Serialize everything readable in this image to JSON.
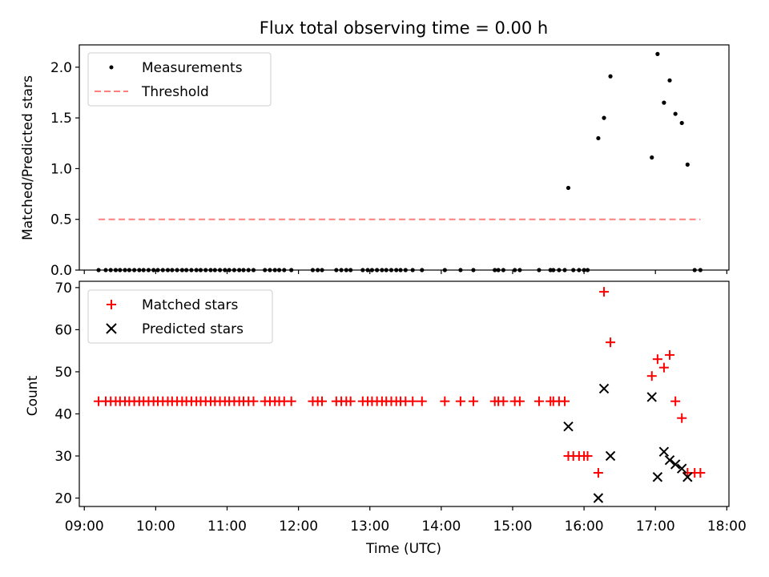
{
  "chart_data": [
    {
      "type": "scatter",
      "title": "Flux total observing time = 0.00 h",
      "xlabel": "",
      "ylabel": "Matched/Predicted stars",
      "xlim": [
        8.93,
        18.03
      ],
      "ylim": [
        0.0,
        2.22
      ],
      "yticks": [
        0.0,
        0.5,
        1.0,
        1.5,
        2.0
      ],
      "ytick_labels": [
        "0.0",
        "0.5",
        "1.0",
        "1.5",
        "2.0"
      ],
      "legend": {
        "position": "top-left",
        "entries": [
          "Measurements",
          "Threshold"
        ]
      },
      "series": [
        {
          "name": "Measurements",
          "marker": "dot",
          "color": "#000000",
          "x": [
            9.2,
            9.3,
            9.37,
            9.44,
            9.5,
            9.57,
            9.63,
            9.7,
            9.77,
            9.83,
            9.9,
            9.97,
            10.03,
            10.1,
            10.17,
            10.23,
            10.3,
            10.37,
            10.43,
            10.5,
            10.57,
            10.63,
            10.7,
            10.77,
            10.83,
            10.9,
            10.97,
            11.03,
            11.1,
            11.17,
            11.23,
            11.3,
            11.37,
            11.53,
            11.6,
            11.67,
            11.73,
            11.8,
            11.9,
            12.2,
            12.27,
            12.33,
            12.53,
            12.6,
            12.67,
            12.73,
            12.9,
            12.97,
            13.03,
            13.1,
            13.17,
            13.23,
            13.3,
            13.37,
            13.43,
            13.5,
            13.6,
            13.73,
            14.05,
            14.27,
            14.45,
            14.75,
            14.8,
            14.87,
            15.03,
            15.1,
            15.37,
            15.53,
            15.57,
            15.65,
            15.73,
            15.78,
            15.85,
            15.93,
            16.0,
            16.05,
            16.2,
            16.28,
            16.37,
            16.95,
            17.03,
            17.12,
            17.2,
            17.28,
            17.37,
            17.45,
            17.55,
            17.63
          ],
          "values": [
            0,
            0,
            0,
            0,
            0,
            0,
            0,
            0,
            0,
            0,
            0,
            0,
            0,
            0,
            0,
            0,
            0,
            0,
            0,
            0,
            0,
            0,
            0,
            0,
            0,
            0,
            0,
            0,
            0,
            0,
            0,
            0,
            0,
            0,
            0,
            0,
            0,
            0,
            0,
            0,
            0,
            0,
            0,
            0,
            0,
            0,
            0,
            0,
            0,
            0,
            0,
            0,
            0,
            0,
            0,
            0,
            0,
            0,
            0,
            0,
            0,
            0,
            0,
            0,
            0,
            0,
            0,
            0,
            0,
            0,
            0,
            0.81,
            0,
            0,
            0,
            0,
            1.3,
            1.5,
            1.91,
            1.11,
            2.13,
            1.65,
            1.87,
            1.54,
            1.45,
            1.04,
            0,
            0
          ]
        },
        {
          "name": "Threshold",
          "type": "line",
          "style": "dashed",
          "color": "#ff7f7f",
          "x": [
            9.2,
            17.63
          ],
          "values": [
            0.5,
            0.5
          ]
        }
      ]
    },
    {
      "type": "scatter",
      "title": "",
      "xlabel": "Time (UTC)",
      "ylabel": "Count",
      "xlim": [
        8.93,
        18.03
      ],
      "ylim": [
        18.0,
        71.5
      ],
      "yticks": [
        20,
        30,
        40,
        50,
        60,
        70
      ],
      "ytick_labels": [
        "20",
        "30",
        "40",
        "50",
        "60",
        "70"
      ],
      "xticks": [
        9,
        10,
        11,
        12,
        13,
        14,
        15,
        16,
        17,
        18
      ],
      "xtick_labels": [
        "09:00",
        "10:00",
        "11:00",
        "12:00",
        "13:00",
        "14:00",
        "15:00",
        "16:00",
        "17:00",
        "18:00"
      ],
      "legend": {
        "position": "top-left",
        "entries": [
          "Matched stars",
          "Predicted stars"
        ]
      },
      "series": [
        {
          "name": "Matched stars",
          "marker": "plus",
          "color": "#ff0000",
          "x": [
            9.2,
            9.3,
            9.37,
            9.44,
            9.5,
            9.57,
            9.63,
            9.7,
            9.77,
            9.83,
            9.9,
            9.97,
            10.03,
            10.1,
            10.17,
            10.23,
            10.3,
            10.37,
            10.43,
            10.5,
            10.57,
            10.63,
            10.7,
            10.77,
            10.83,
            10.9,
            10.97,
            11.03,
            11.1,
            11.17,
            11.23,
            11.3,
            11.37,
            11.53,
            11.6,
            11.67,
            11.73,
            11.8,
            11.9,
            12.2,
            12.27,
            12.33,
            12.53,
            12.6,
            12.67,
            12.73,
            12.9,
            12.97,
            13.03,
            13.1,
            13.17,
            13.23,
            13.3,
            13.37,
            13.43,
            13.5,
            13.6,
            13.73,
            14.05,
            14.27,
            14.45,
            14.75,
            14.8,
            14.87,
            15.03,
            15.1,
            15.37,
            15.53,
            15.57,
            15.65,
            15.73,
            15.78,
            15.85,
            15.93,
            16.0,
            16.05,
            16.2,
            16.28,
            16.37,
            16.95,
            17.03,
            17.12,
            17.2,
            17.28,
            17.37,
            17.45,
            17.55,
            17.63
          ],
          "values": [
            43,
            43,
            43,
            43,
            43,
            43,
            43,
            43,
            43,
            43,
            43,
            43,
            43,
            43,
            43,
            43,
            43,
            43,
            43,
            43,
            43,
            43,
            43,
            43,
            43,
            43,
            43,
            43,
            43,
            43,
            43,
            43,
            43,
            43,
            43,
            43,
            43,
            43,
            43,
            43,
            43,
            43,
            43,
            43,
            43,
            43,
            43,
            43,
            43,
            43,
            43,
            43,
            43,
            43,
            43,
            43,
            43,
            43,
            43,
            43,
            43,
            43,
            43,
            43,
            43,
            43,
            43,
            43,
            43,
            43,
            43,
            30,
            30,
            30,
            30,
            30,
            26,
            69,
            57,
            49,
            53,
            51,
            54,
            43,
            39,
            26,
            26,
            26
          ]
        },
        {
          "name": "Predicted stars",
          "marker": "x",
          "color": "#000000",
          "x": [
            15.78,
            16.2,
            16.28,
            16.37,
            16.95,
            17.03,
            17.12,
            17.2,
            17.28,
            17.37,
            17.45
          ],
          "values": [
            37,
            20,
            46,
            30,
            44,
            25,
            31,
            29,
            28,
            27,
            25
          ]
        }
      ]
    }
  ]
}
